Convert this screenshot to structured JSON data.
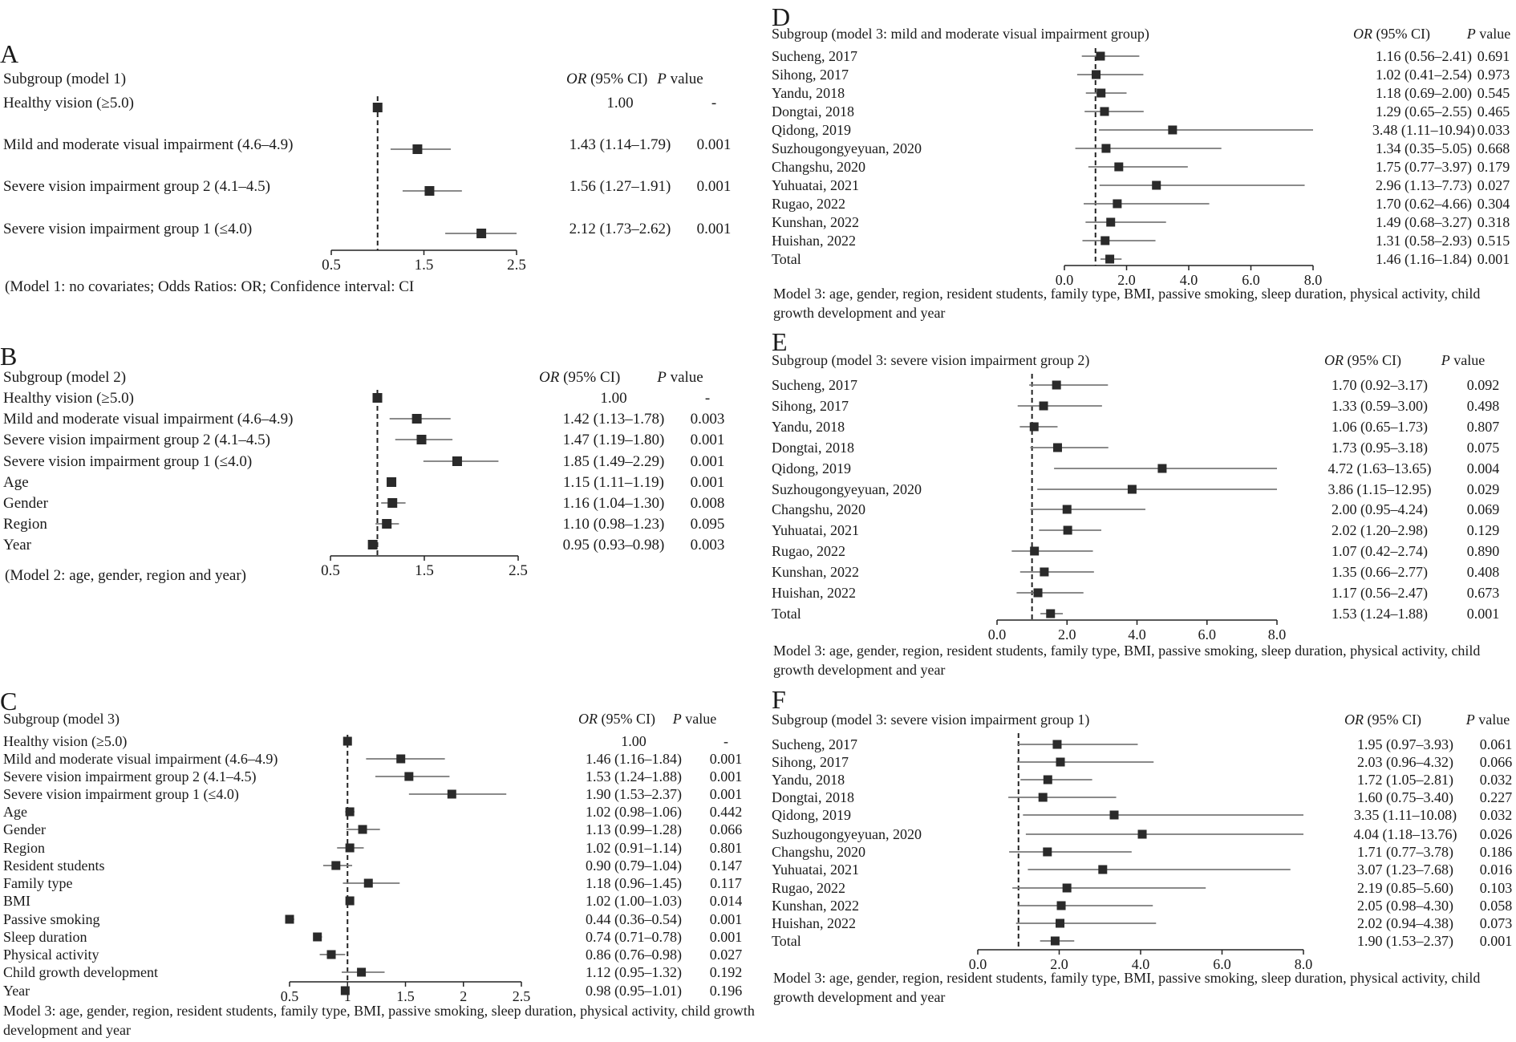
{
  "chart_data": [
    {
      "type": "forest",
      "panel_label": "A",
      "subgroup_header": "Subgroup (model 1)",
      "or_header": "OR",
      "or_header_rest": " (95% CI)",
      "p_header": "P",
      "p_header_rest": "  value",
      "footnote": "(Model 1: no covariates; Odds Ratios: OR; Confidence interval: CI",
      "reference_line": 1.0,
      "xlim": [
        0.5,
        2.5
      ],
      "xticks": [
        "0.5",
        "1.5",
        "2.5"
      ],
      "rows": [
        {
          "label": "Healthy vision (≥5.0)",
          "or": 1.0,
          "lo": 1.0,
          "hi": 1.0,
          "or_text": "1.00",
          "p": "-"
        },
        {
          "label": "Mild and moderate visual impairment (4.6–4.9)",
          "or": 1.43,
          "lo": 1.14,
          "hi": 1.79,
          "or_text": "1.43 (1.14–1.79)",
          "p": "0.001"
        },
        {
          "label": "Severe vision impairment group 2 (4.1–4.5)",
          "or": 1.56,
          "lo": 1.27,
          "hi": 1.91,
          "or_text": "1.56 (1.27–1.91)",
          "p": "0.001"
        },
        {
          "label": "Severe vision impairment group 1 (≤4.0)",
          "or": 2.12,
          "lo": 1.73,
          "hi": 2.62,
          "or_text": "2.12 (1.73–2.62)",
          "p": "0.001"
        }
      ]
    },
    {
      "type": "forest",
      "panel_label": "B",
      "subgroup_header": "Subgroup (model 2)",
      "or_header": "OR",
      "or_header_rest": " (95% CI)",
      "p_header": "P",
      "p_header_rest": "  value",
      "footnote": "(Model 2: age, gender, region and year)",
      "reference_line": 1.0,
      "xlim": [
        0.5,
        2.5
      ],
      "xticks": [
        "0.5",
        "1.5",
        "2.5"
      ],
      "rows": [
        {
          "label": "Healthy vision (≥5.0)",
          "or": 1.0,
          "lo": 1.0,
          "hi": 1.0,
          "or_text": "1.00",
          "p": "-"
        },
        {
          "label": "Mild and moderate visual impairment (4.6–4.9)",
          "or": 1.42,
          "lo": 1.13,
          "hi": 1.78,
          "or_text": "1.42 (1.13–1.78)",
          "p": "0.003"
        },
        {
          "label": "Severe vision impairment group 2 (4.1–4.5)",
          "or": 1.47,
          "lo": 1.19,
          "hi": 1.8,
          "or_text": "1.47 (1.19–1.80)",
          "p": "0.001"
        },
        {
          "label": "Severe vision impairment group 1 (≤4.0)",
          "or": 1.85,
          "lo": 1.49,
          "hi": 2.29,
          "or_text": "1.85 (1.49–2.29)",
          "p": "0.001"
        },
        {
          "label": "Age",
          "or": 1.15,
          "lo": 1.11,
          "hi": 1.19,
          "or_text": "1.15 (1.11–1.19)",
          "p": "0.001"
        },
        {
          "label": "Gender",
          "or": 1.16,
          "lo": 1.04,
          "hi": 1.3,
          "or_text": "1.16 (1.04–1.30)",
          "p": "0.008"
        },
        {
          "label": "Region",
          "or": 1.1,
          "lo": 0.98,
          "hi": 1.23,
          "or_text": "1.10 (0.98–1.23)",
          "p": "0.095"
        },
        {
          "label": "Year",
          "or": 0.95,
          "lo": 0.93,
          "hi": 0.98,
          "or_text": "0.95 (0.93–0.98)",
          "p": "0.003"
        }
      ]
    },
    {
      "type": "forest",
      "panel_label": "C",
      "subgroup_header": "Subgroup (model 3)",
      "or_header": "OR",
      "or_header_rest": " (95% CI)",
      "p_header": "P",
      "p_header_rest": "  value",
      "footnote": "Model 3: age, gender, region, resident students, family type, BMI, passive smoking, sleep duration, physical activity, child growth development and year",
      "reference_line": 1.0,
      "xlim": [
        0.5,
        2.5
      ],
      "xticks": [
        "0.5",
        "1",
        "1.5",
        "2",
        "2.5"
      ],
      "rows": [
        {
          "label": "Healthy vision (≥5.0)",
          "or": 1.0,
          "lo": 1.0,
          "hi": 1.0,
          "or_text": "1.00",
          "p": "-"
        },
        {
          "label": "Mild and moderate visual impairment (4.6–4.9)",
          "or": 1.46,
          "lo": 1.16,
          "hi": 1.84,
          "or_text": "1.46 (1.16–1.84)",
          "p": "0.001"
        },
        {
          "label": "Severe vision impairment group 2 (4.1–4.5)",
          "or": 1.53,
          "lo": 1.24,
          "hi": 1.88,
          "or_text": "1.53 (1.24–1.88)",
          "p": "0.001"
        },
        {
          "label": "Severe vision impairment group 1 (≤4.0)",
          "or": 1.9,
          "lo": 1.53,
          "hi": 2.37,
          "or_text": "1.90 (1.53–2.37)",
          "p": "0.001"
        },
        {
          "label": "Age",
          "or": 1.02,
          "lo": 0.98,
          "hi": 1.06,
          "or_text": "1.02 (0.98–1.06)",
          "p": "0.442"
        },
        {
          "label": "Gender",
          "or": 1.13,
          "lo": 0.99,
          "hi": 1.28,
          "or_text": "1.13 (0.99–1.28)",
          "p": "0.066"
        },
        {
          "label": "Region",
          "or": 1.02,
          "lo": 0.91,
          "hi": 1.14,
          "or_text": "1.02 (0.91–1.14)",
          "p": "0.801"
        },
        {
          "label": "Resident students",
          "or": 0.9,
          "lo": 0.79,
          "hi": 1.04,
          "or_text": "0.90 (0.79–1.04)",
          "p": "0.147"
        },
        {
          "label": "Family type",
          "or": 1.18,
          "lo": 0.96,
          "hi": 1.45,
          "or_text": "1.18 (0.96–1.45)",
          "p": "0.117"
        },
        {
          "label": "BMI",
          "or": 1.02,
          "lo": 1.0,
          "hi": 1.03,
          "or_text": "1.02 (1.00–1.03)",
          "p": "0.014"
        },
        {
          "label": "Passive smoking",
          "or": 0.44,
          "lo": 0.36,
          "hi": 0.54,
          "or_text": "0.44 (0.36–0.54)",
          "p": "0.001"
        },
        {
          "label": "Sleep duration",
          "or": 0.74,
          "lo": 0.71,
          "hi": 0.78,
          "or_text": "0.74 (0.71–0.78)",
          "p": "0.001"
        },
        {
          "label": "Physical activity",
          "or": 0.86,
          "lo": 0.76,
          "hi": 0.98,
          "or_text": "0.86 (0.76–0.98)",
          "p": "0.027"
        },
        {
          "label": "Child growth development",
          "or": 1.12,
          "lo": 0.95,
          "hi": 1.32,
          "or_text": "1.12 (0.95–1.32)",
          "p": "0.192"
        },
        {
          "label": "Year",
          "or": 0.98,
          "lo": 0.95,
          "hi": 1.01,
          "or_text": "0.98 (0.95–1.01)",
          "p": "0.196"
        }
      ]
    },
    {
      "type": "forest",
      "panel_label": "D",
      "subgroup_header": "Subgroup (model 3: mild and moderate visual impairment group)",
      "or_header": "OR",
      "or_header_rest": " (95% CI)",
      "p_header": "P",
      "p_header_rest": "  value",
      "footnote": "Model 3: age, gender, region, resident students, family type, BMI, passive smoking, sleep duration, physical activity, child growth development and year",
      "reference_line": 1.0,
      "xlim": [
        0.0,
        8.0
      ],
      "xticks": [
        "0.0",
        "2.0",
        "4.0",
        "6.0",
        "8.0"
      ],
      "rows": [
        {
          "label": "Sucheng, 2017",
          "or": 1.16,
          "lo": 0.56,
          "hi": 2.41,
          "or_text": "1.16 (0.56–2.41)",
          "p": "0.691"
        },
        {
          "label": "Sihong, 2017",
          "or": 1.02,
          "lo": 0.41,
          "hi": 2.54,
          "or_text": "1.02 (0.41–2.54)",
          "p": "0.973"
        },
        {
          "label": "Yandu, 2018",
          "or": 1.18,
          "lo": 0.69,
          "hi": 2.0,
          "or_text": "1.18 (0.69–2.00)",
          "p": "0.545"
        },
        {
          "label": "Dongtai, 2018",
          "or": 1.29,
          "lo": 0.65,
          "hi": 2.55,
          "or_text": "1.29 (0.65–2.55)",
          "p": "0.465"
        },
        {
          "label": "Qidong, 2019",
          "or": 3.48,
          "lo": 1.11,
          "hi": 10.94,
          "or_text": "3.48 (1.11–10.94)",
          "p": "0.033"
        },
        {
          "label": "Suzhougongyeyuan, 2020",
          "or": 1.34,
          "lo": 0.35,
          "hi": 5.05,
          "or_text": "1.34 (0.35–5.05)",
          "p": "0.668"
        },
        {
          "label": "Changshu, 2020",
          "or": 1.75,
          "lo": 0.77,
          "hi": 3.97,
          "or_text": "1.75 (0.77–3.97)",
          "p": "0.179"
        },
        {
          "label": "Yuhuatai, 2021",
          "or": 2.96,
          "lo": 1.13,
          "hi": 7.73,
          "or_text": "2.96 (1.13–7.73)",
          "p": "0.027"
        },
        {
          "label": "Rugao, 2022",
          "or": 1.7,
          "lo": 0.62,
          "hi": 4.66,
          "or_text": "1.70 (0.62–4.66)",
          "p": "0.304"
        },
        {
          "label": "Kunshan, 2022",
          "or": 1.49,
          "lo": 0.68,
          "hi": 3.27,
          "or_text": "1.49 (0.68–3.27)",
          "p": "0.318"
        },
        {
          "label": "Huishan, 2022",
          "or": 1.31,
          "lo": 0.58,
          "hi": 2.93,
          "or_text": "1.31 (0.58–2.93)",
          "p": "0.515"
        },
        {
          "label": "Total",
          "or": 1.46,
          "lo": 1.16,
          "hi": 1.84,
          "or_text": "1.46 (1.16–1.84)",
          "p": "0.001"
        }
      ]
    },
    {
      "type": "forest",
      "panel_label": "E",
      "subgroup_header": "Subgroup (model 3: severe vision impairment group 2)",
      "or_header": "OR",
      "or_header_rest": " (95% CI)",
      "p_header": "P",
      "p_header_rest": "  value",
      "footnote": "Model 3: age, gender, region, resident students, family type, BMI, passive smoking, sleep duration, physical activity, child growth development and year",
      "reference_line": 1.0,
      "xlim": [
        0.0,
        8.0
      ],
      "xticks": [
        "0.0",
        "2.0",
        "4.0",
        "6.0",
        "8.0"
      ],
      "rows": [
        {
          "label": "Sucheng, 2017",
          "or": 1.7,
          "lo": 0.92,
          "hi": 3.17,
          "or_text": "1.70 (0.92–3.17)",
          "p": "0.092"
        },
        {
          "label": "Sihong, 2017",
          "or": 1.33,
          "lo": 0.59,
          "hi": 3.0,
          "or_text": "1.33 (0.59–3.00)",
          "p": "0.498"
        },
        {
          "label": "Yandu, 2018",
          "or": 1.06,
          "lo": 0.65,
          "hi": 1.73,
          "or_text": "1.06 (0.65–1.73)",
          "p": "0.807"
        },
        {
          "label": "Dongtai, 2018",
          "or": 1.73,
          "lo": 0.95,
          "hi": 3.18,
          "or_text": "1.73 (0.95–3.18)",
          "p": "0.075"
        },
        {
          "label": "Qidong, 2019",
          "or": 4.72,
          "lo": 1.63,
          "hi": 13.65,
          "or_text": "4.72 (1.63–13.65)",
          "p": "0.004"
        },
        {
          "label": "Suzhougongyeyuan, 2020",
          "or": 3.86,
          "lo": 1.15,
          "hi": 12.95,
          "or_text": "3.86 (1.15–12.95)",
          "p": "0.029"
        },
        {
          "label": "Changshu, 2020",
          "or": 2.0,
          "lo": 0.95,
          "hi": 4.24,
          "or_text": "2.00 (0.95–4.24)",
          "p": "0.069"
        },
        {
          "label": "Yuhuatai, 2021",
          "or": 2.02,
          "lo": 1.2,
          "hi": 2.98,
          "or_text": "2.02 (1.20–2.98)",
          "p": "0.129"
        },
        {
          "label": "Rugao, 2022",
          "or": 1.07,
          "lo": 0.42,
          "hi": 2.74,
          "or_text": "1.07 (0.42–2.74)",
          "p": "0.890"
        },
        {
          "label": "Kunshan, 2022",
          "or": 1.35,
          "lo": 0.66,
          "hi": 2.77,
          "or_text": "1.35 (0.66–2.77)",
          "p": "0.408"
        },
        {
          "label": "Huishan, 2022",
          "or": 1.17,
          "lo": 0.56,
          "hi": 2.47,
          "or_text": "1.17 (0.56–2.47)",
          "p": "0.673"
        },
        {
          "label": "Total",
          "or": 1.53,
          "lo": 1.24,
          "hi": 1.88,
          "or_text": "1.53 (1.24–1.88)",
          "p": "0.001"
        }
      ]
    },
    {
      "type": "forest",
      "panel_label": "F",
      "subgroup_header": "Subgroup (model 3: severe vision impairment group 1)",
      "or_header": "OR",
      "or_header_rest": " (95% CI)",
      "p_header": "P",
      "p_header_rest": "  value",
      "footnote": "Model 3: age, gender, region, resident students, family type, BMI, passive smoking, sleep duration, physical activity, child growth development and year",
      "reference_line": 1.0,
      "xlim": [
        0.0,
        8.0
      ],
      "xticks": [
        "0.0",
        "2.0",
        "4.0",
        "6.0",
        "8.0"
      ],
      "rows": [
        {
          "label": "Sucheng, 2017",
          "or": 1.95,
          "lo": 0.97,
          "hi": 3.93,
          "or_text": "1.95 (0.97–3.93)",
          "p": "0.061"
        },
        {
          "label": "Sihong, 2017",
          "or": 2.03,
          "lo": 0.96,
          "hi": 4.32,
          "or_text": "2.03 (0.96–4.32)",
          "p": "0.066"
        },
        {
          "label": "Yandu, 2018",
          "or": 1.72,
          "lo": 1.05,
          "hi": 2.81,
          "or_text": "1.72 (1.05–2.81)",
          "p": "0.032"
        },
        {
          "label": "Dongtai, 2018",
          "or": 1.6,
          "lo": 0.75,
          "hi": 3.4,
          "or_text": "1.60 (0.75–3.40)",
          "p": "0.227"
        },
        {
          "label": "Qidong, 2019",
          "or": 3.35,
          "lo": 1.11,
          "hi": 10.08,
          "or_text": "3.35 (1.11–10.08)",
          "p": "0.032"
        },
        {
          "label": "Suzhougongyeyuan, 2020",
          "or": 4.04,
          "lo": 1.18,
          "hi": 13.76,
          "or_text": "4.04 (1.18–13.76)",
          "p": "0.026"
        },
        {
          "label": "Changshu, 2020",
          "or": 1.71,
          "lo": 0.77,
          "hi": 3.78,
          "or_text": "1.71 (0.77–3.78)",
          "p": "0.186"
        },
        {
          "label": "Yuhuatai, 2021",
          "or": 3.07,
          "lo": 1.23,
          "hi": 7.68,
          "or_text": "3.07 (1.23–7.68)",
          "p": "0.016"
        },
        {
          "label": "Rugao, 2022",
          "or": 2.19,
          "lo": 0.85,
          "hi": 5.6,
          "or_text": "2.19 (0.85–5.60)",
          "p": "0.103"
        },
        {
          "label": "Kunshan, 2022",
          "or": 2.05,
          "lo": 0.98,
          "hi": 4.3,
          "or_text": "2.05 (0.98–4.30)",
          "p": "0.058"
        },
        {
          "label": "Huishan, 2022",
          "or": 2.02,
          "lo": 0.94,
          "hi": 4.38,
          "or_text": "2.02 (0.94–4.38)",
          "p": "0.073"
        },
        {
          "label": "Total",
          "or": 1.9,
          "lo": 1.53,
          "hi": 2.37,
          "or_text": "1.90 (1.53–2.37)",
          "p": "0.001"
        }
      ]
    }
  ],
  "colors": {
    "text": "#1a1a1a",
    "marker": "#2a2a2a",
    "ci_line": "#7a7a7a",
    "reference_line": "#222222"
  }
}
